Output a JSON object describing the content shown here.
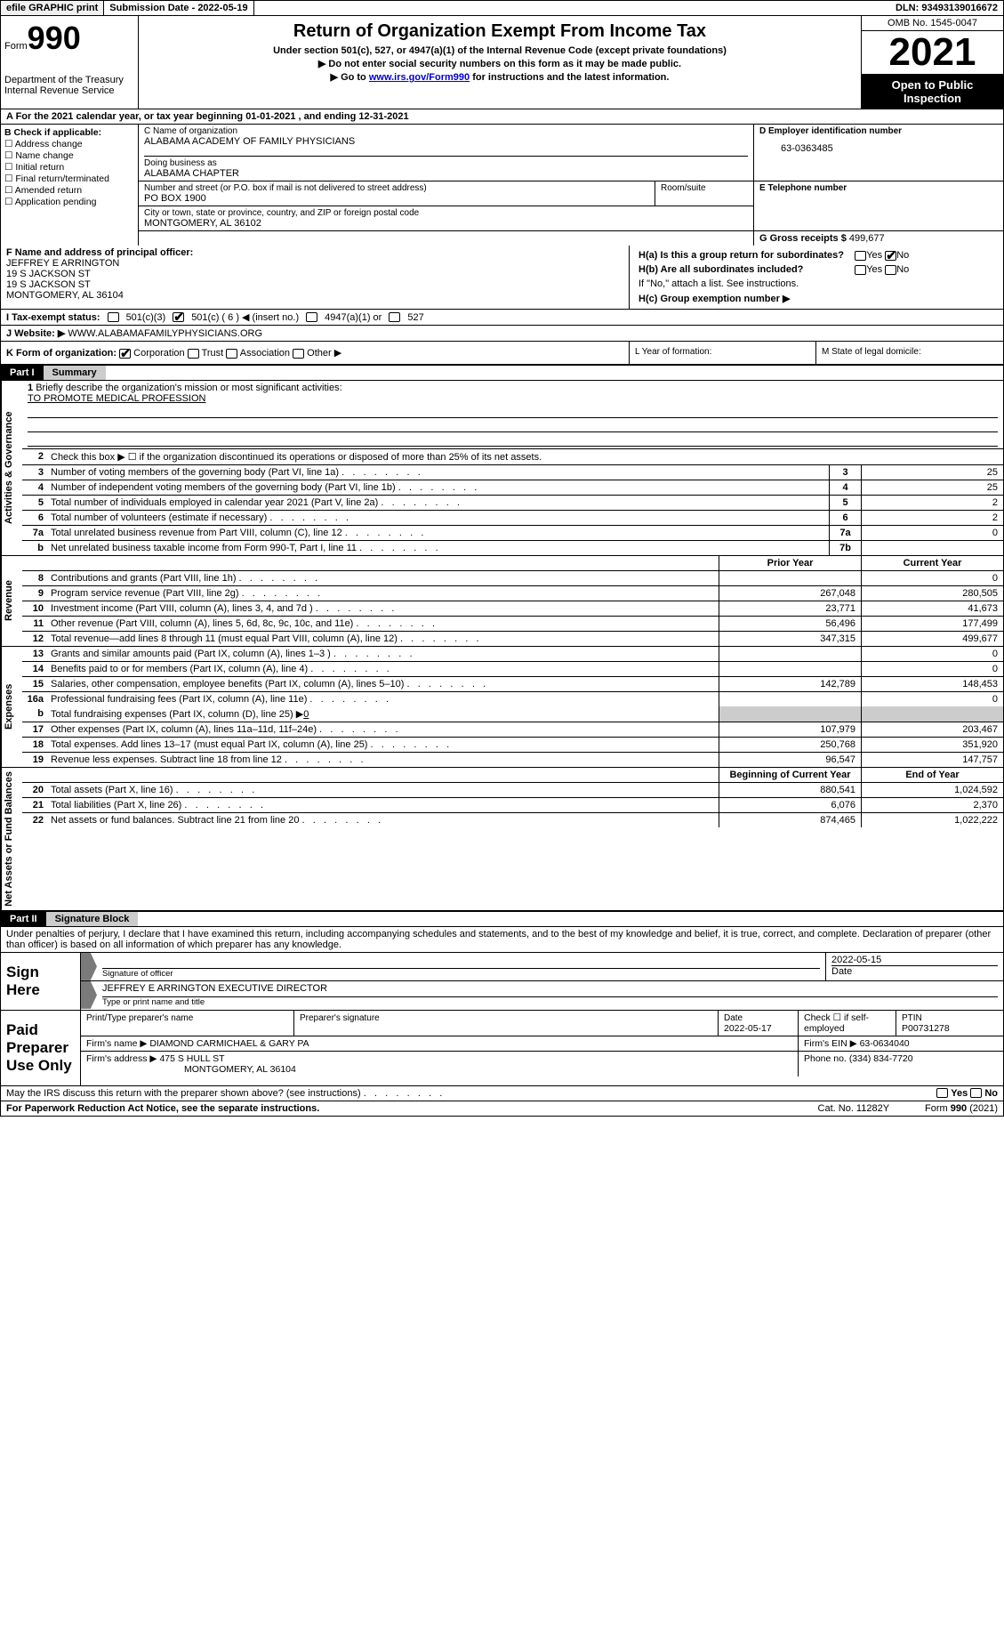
{
  "topbar": {
    "efile": "efile GRAPHIC print",
    "submission": "Submission Date - 2022-05-19",
    "dln": "DLN: 93493139016672"
  },
  "header": {
    "form_prefix": "Form",
    "form_number": "990",
    "dept": "Department of the Treasury",
    "irs": "Internal Revenue Service",
    "title": "Return of Organization Exempt From Income Tax",
    "subtitle": "Under section 501(c), 527, or 4947(a)(1) of the Internal Revenue Code (except private foundations)",
    "warn": "▶ Do not enter social security numbers on this form as it may be made public.",
    "goto_pre": "▶ Go to ",
    "goto_link": "www.irs.gov/Form990",
    "goto_post": " for instructions and the latest information.",
    "omb": "OMB No. 1545-0047",
    "year": "2021",
    "otp1": "Open to Public",
    "otp2": "Inspection"
  },
  "rowA": "A   For the 2021 calendar year, or tax year beginning 01-01-2021    , and ending 12-31-2021",
  "boxB": {
    "title": "B Check if applicable:",
    "items": [
      "☐ Address change",
      "☐ Name change",
      "☐ Initial return",
      "☐ Final return/terminated",
      "☐ Amended return",
      "☐ Application pending"
    ]
  },
  "boxC": {
    "name_lbl": "C Name of organization",
    "name": "ALABAMA ACADEMY OF FAMILY PHYSICIANS",
    "dba_lbl": "Doing business as",
    "dba": "ALABAMA CHAPTER",
    "street_lbl": "Number and street (or P.O. box if mail is not delivered to street address)",
    "street": "PO BOX 1900",
    "room_lbl": "Room/suite",
    "city_lbl": "City or town, state or province, country, and ZIP or foreign postal code",
    "city": "MONTGOMERY, AL  36102"
  },
  "boxD": {
    "lbl": "D Employer identification number",
    "val": "63-0363485"
  },
  "boxE": {
    "lbl": "E Telephone number",
    "val": ""
  },
  "boxG": {
    "lbl": "G Gross receipts $",
    "val": "499,677"
  },
  "boxF": {
    "lbl": "F  Name and address of principal officer:",
    "name": "JEFFREY E ARRINGTON",
    "l1": "19 S JACKSON ST",
    "l2": "19 S JACKSON ST",
    "l3": "MONTGOMERY, AL  36104"
  },
  "boxH": {
    "ha": "H(a)  Is this a group return for subordinates?",
    "hb": "H(b)  Are all subordinates included?",
    "hb2": "If \"No,\" attach a list. See instructions.",
    "hc": "H(c)  Group exemption number ▶",
    "yes": "Yes",
    "no": "No"
  },
  "rowI": {
    "lbl": "I    Tax-exempt status:",
    "o1": "501(c)(3)",
    "o2": "501(c) ( 6 ) ◀ (insert no.)",
    "o3": "4947(a)(1) or",
    "o4": "527"
  },
  "rowJ": {
    "lbl": "J   Website: ▶",
    "val": "WWW.ALABAMAFAMILYPHYSICIANS.ORG"
  },
  "rowK": {
    "lbl": "K Form of organization:",
    "o1": "Corporation",
    "o2": "Trust",
    "o3": "Association",
    "o4": "Other ▶"
  },
  "rowL": "L Year of formation:",
  "rowM": "M State of legal domicile:",
  "part1": {
    "label": "Part I",
    "title": "Summary"
  },
  "summary": {
    "vlabels": [
      "Activities & Governance",
      "Revenue",
      "Expenses",
      "Net Assets or Fund Balances"
    ],
    "line1": "Briefly describe the organization's mission or most significant activities:",
    "mission": "TO PROMOTE MEDICAL PROFESSION",
    "line2": "Check this box ▶ ☐  if the organization discontinued its operations or disposed of more than 25% of its net assets.",
    "rows_gov": [
      {
        "n": "3",
        "t": "Number of voting members of the governing body (Part VI, line 1a)",
        "box": "3",
        "v": "25"
      },
      {
        "n": "4",
        "t": "Number of independent voting members of the governing body (Part VI, line 1b)",
        "box": "4",
        "v": "25"
      },
      {
        "n": "5",
        "t": "Total number of individuals employed in calendar year 2021 (Part V, line 2a)",
        "box": "5",
        "v": "2"
      },
      {
        "n": "6",
        "t": "Total number of volunteers (estimate if necessary)",
        "box": "6",
        "v": "2"
      },
      {
        "n": "7a",
        "t": "Total unrelated business revenue from Part VIII, column (C), line 12",
        "box": "7a",
        "v": "0"
      },
      {
        "n": "b",
        "t": "Net unrelated business taxable income from Form 990-T, Part I, line 11",
        "box": "7b",
        "v": ""
      }
    ],
    "hdr_prior": "Prior Year",
    "hdr_curr": "Current Year",
    "rows_rev": [
      {
        "n": "8",
        "t": "Contributions and grants (Part VIII, line 1h)",
        "p": "",
        "c": "0"
      },
      {
        "n": "9",
        "t": "Program service revenue (Part VIII, line 2g)",
        "p": "267,048",
        "c": "280,505"
      },
      {
        "n": "10",
        "t": "Investment income (Part VIII, column (A), lines 3, 4, and 7d )",
        "p": "23,771",
        "c": "41,673"
      },
      {
        "n": "11",
        "t": "Other revenue (Part VIII, column (A), lines 5, 6d, 8c, 9c, 10c, and 11e)",
        "p": "56,496",
        "c": "177,499"
      },
      {
        "n": "12",
        "t": "Total revenue—add lines 8 through 11 (must equal Part VIII, column (A), line 12)",
        "p": "347,315",
        "c": "499,677"
      }
    ],
    "rows_exp": [
      {
        "n": "13",
        "t": "Grants and similar amounts paid (Part IX, column (A), lines 1–3 )",
        "p": "",
        "c": "0"
      },
      {
        "n": "14",
        "t": "Benefits paid to or for members (Part IX, column (A), line 4)",
        "p": "",
        "c": "0"
      },
      {
        "n": "15",
        "t": "Salaries, other compensation, employee benefits (Part IX, column (A), lines 5–10)",
        "p": "142,789",
        "c": "148,453"
      },
      {
        "n": "16a",
        "t": "Professional fundraising fees (Part IX, column (A), line 11e)",
        "p": "",
        "c": "0"
      }
    ],
    "line16b_pre": "Total fundraising expenses (Part IX, column (D), line 25) ▶",
    "line16b_val": "0",
    "rows_exp2": [
      {
        "n": "17",
        "t": "Other expenses (Part IX, column (A), lines 11a–11d, 11f–24e)",
        "p": "107,979",
        "c": "203,467"
      },
      {
        "n": "18",
        "t": "Total expenses. Add lines 13–17 (must equal Part IX, column (A), line 25)",
        "p": "250,768",
        "c": "351,920"
      },
      {
        "n": "19",
        "t": "Revenue less expenses. Subtract line 18 from line 12",
        "p": "96,547",
        "c": "147,757"
      }
    ],
    "hdr_beg": "Beginning of Current Year",
    "hdr_end": "End of Year",
    "rows_net": [
      {
        "n": "20",
        "t": "Total assets (Part X, line 16)",
        "p": "880,541",
        "c": "1,024,592"
      },
      {
        "n": "21",
        "t": "Total liabilities (Part X, line 26)",
        "p": "6,076",
        "c": "2,370"
      },
      {
        "n": "22",
        "t": "Net assets or fund balances. Subtract line 21 from line 20",
        "p": "874,465",
        "c": "1,022,222"
      }
    ]
  },
  "part2": {
    "label": "Part II",
    "title": "Signature Block"
  },
  "sig": {
    "intro": "Under penalties of perjury, I declare that I have examined this return, including accompanying schedules and statements, and to the best of my knowledge and belief, it is true, correct, and complete. Declaration of preparer (other than officer) is based on all information of which preparer has any knowledge.",
    "sign_here": "Sign Here",
    "sig_officer": "Signature of officer",
    "date": "Date",
    "date_val": "2022-05-15",
    "name_title": "JEFFREY E ARRINGTON  EXECUTIVE DIRECTOR",
    "name_lbl": "Type or print name and title",
    "paid": "Paid Preparer Use Only",
    "prep_name_lbl": "Print/Type preparer's name",
    "prep_sig_lbl": "Preparer's signature",
    "prep_date_lbl": "Date",
    "prep_date": "2022-05-17",
    "prep_check": "Check ☐ if self-employed",
    "ptin_lbl": "PTIN",
    "ptin": "P00731278",
    "firm_name_lbl": "Firm's name    ▶",
    "firm_name": "DIAMOND CARMICHAEL & GARY PA",
    "firm_ein_lbl": "Firm's EIN ▶",
    "firm_ein": "63-0634040",
    "firm_addr_lbl": "Firm's address ▶",
    "firm_addr": "475 S HULL ST",
    "firm_city": "MONTGOMERY, AL  36104",
    "phone_lbl": "Phone no.",
    "phone": "(334) 834-7720",
    "may": "May the IRS discuss this return with the preparer shown above? (see instructions)"
  },
  "footer": {
    "pra": "For Paperwork Reduction Act Notice, see the separate instructions.",
    "cat": "Cat. No. 11282Y",
    "form": "Form 990 (2021)"
  }
}
